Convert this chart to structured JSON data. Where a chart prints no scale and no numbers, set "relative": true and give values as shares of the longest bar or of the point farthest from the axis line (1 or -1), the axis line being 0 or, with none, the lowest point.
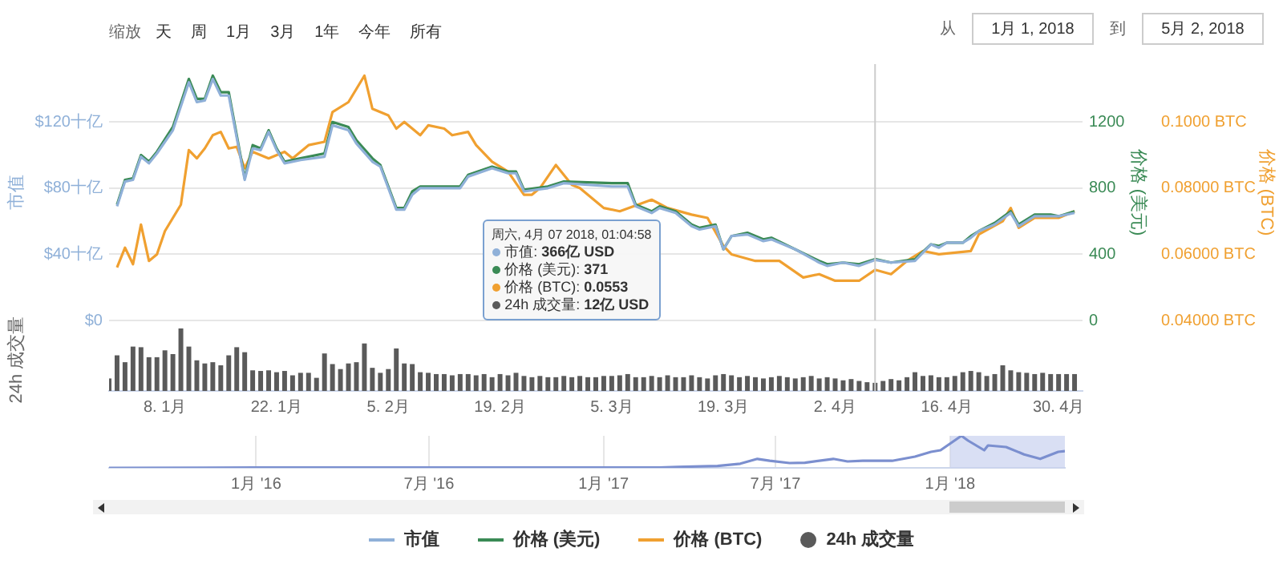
{
  "chart_data": [
    {
      "type": "line",
      "ylabel": "市值",
      "y2label": "价格 (美元)",
      "y3label": "价格 (BTC)",
      "annotations": [
        "缩放",
        "天",
        "周",
        "1月",
        "3月",
        "1年",
        "今年",
        "所有",
        "从",
        "1月 1, 2018",
        "到",
        "5月 2, 2018",
        "周六, 4月 07 2018, 01:04:58",
        "市值: 366亿 USD",
        "价格 (美元): 371",
        "价格 (BTC): 0.0553",
        "24h 成交量: 12亿 USD"
      ],
      "x": [
        "2018-01-02",
        "2018-01-03",
        "2018-01-04",
        "2018-01-05",
        "2018-01-06",
        "2018-01-07",
        "2018-01-09",
        "2018-01-11",
        "2018-01-12",
        "2018-01-13",
        "2018-01-14",
        "2018-01-15",
        "2018-01-16",
        "2018-01-18",
        "2018-01-19",
        "2018-01-20",
        "2018-01-21",
        "2018-01-22",
        "2018-01-23",
        "2018-01-25",
        "2018-01-28",
        "2018-01-29",
        "2018-01-31",
        "2018-02-01",
        "2018-02-03",
        "2018-02-04",
        "2018-02-06",
        "2018-02-07",
        "2018-02-08",
        "2018-02-09",
        "2018-02-12",
        "2018-02-14",
        "2018-02-15",
        "2018-02-18",
        "2018-02-20",
        "2018-02-21",
        "2018-02-22",
        "2018-02-25",
        "2018-02-27",
        "2018-03-05",
        "2018-03-07",
        "2018-03-08",
        "2018-03-10",
        "2018-03-11",
        "2018-03-13",
        "2018-03-15",
        "2018-03-16",
        "2018-03-18",
        "2018-03-19",
        "2018-03-20",
        "2018-03-22",
        "2018-03-24",
        "2018-03-25",
        "2018-03-28",
        "2018-03-31",
        "2018-04-01",
        "2018-04-03",
        "2018-04-05",
        "2018-04-07",
        "2018-04-09",
        "2018-04-12",
        "2018-04-14",
        "2018-04-15",
        "2018-04-16",
        "2018-04-18",
        "2018-04-19",
        "2018-04-20",
        "2018-04-22",
        "2018-04-24",
        "2018-04-25",
        "2018-04-27",
        "2018-04-29",
        "2018-04-30",
        "2018-05-02"
      ],
      "xlim": [
        "2018-01-01",
        "2018-05-03"
      ],
      "ylim": [
        0,
        155
      ],
      "yticks": [
        {
          "value": 0,
          "label": "$0"
        },
        {
          "value": 40,
          "label": "$40十亿"
        },
        {
          "value": 80,
          "label": "$80十亿"
        },
        {
          "value": 120,
          "label": "$120十亿"
        }
      ],
      "y2lim": [
        0,
        1550
      ],
      "y2ticks": [
        0,
        400,
        800,
        1200
      ],
      "y3lim": [
        0.04,
        0.1175
      ],
      "y3ticks": [
        {
          "value": 0.04,
          "label": "0.04000 BTC"
        },
        {
          "value": 0.06,
          "label": "0.06000 BTC"
        },
        {
          "value": 0.08,
          "label": "0.08000 BTC"
        },
        {
          "value": 0.1,
          "label": "0.1000 BTC"
        }
      ],
      "series": [
        {
          "name": "市值",
          "color": "#8fb0d8",
          "axis": "y",
          "values": [
            69,
            84,
            85,
            99,
            95,
            101,
            115,
            144,
            132,
            133,
            146,
            136,
            136,
            85,
            104,
            103,
            114,
            103,
            95,
            97,
            99,
            118,
            115,
            107,
            96,
            93,
            67,
            67,
            76,
            80,
            80,
            80,
            87,
            92,
            89,
            89,
            78,
            80,
            83,
            81,
            81,
            69,
            65,
            68,
            65,
            57,
            55,
            57,
            43,
            51,
            52,
            48,
            49,
            43,
            35,
            33,
            35,
            33,
            36.6,
            35,
            36,
            46,
            44,
            47,
            47,
            50,
            54,
            58,
            65,
            57,
            63,
            63,
            63,
            65
          ]
        },
        {
          "name": "价格 (美元)",
          "color": "#3a8a55",
          "axis": "y2",
          "values": [
            700,
            850,
            860,
            1000,
            960,
            1020,
            1170,
            1460,
            1340,
            1340,
            1480,
            1380,
            1380,
            860,
            1060,
            1040,
            1150,
            1040,
            960,
            980,
            1010,
            1200,
            1170,
            1090,
            980,
            940,
            680,
            680,
            780,
            810,
            810,
            810,
            880,
            930,
            900,
            900,
            790,
            810,
            840,
            830,
            830,
            700,
            660,
            690,
            660,
            580,
            560,
            580,
            430,
            510,
            530,
            490,
            500,
            430,
            360,
            340,
            350,
            340,
            371,
            350,
            370,
            460,
            450,
            470,
            470,
            510,
            540,
            590,
            660,
            580,
            640,
            640,
            630,
            660
          ]
        },
        {
          "name": "价格 (BTC)",
          "color": "#f0a030",
          "axis": "y3",
          "x": [
            "2018-01-02",
            "2018-01-03",
            "2018-01-04",
            "2018-01-05",
            "2018-01-06",
            "2018-01-07",
            "2018-01-08",
            "2018-01-10",
            "2018-01-11",
            "2018-01-12",
            "2018-01-13",
            "2018-01-14",
            "2018-01-15",
            "2018-01-16",
            "2018-01-17",
            "2018-01-18",
            "2018-01-19",
            "2018-01-21",
            "2018-01-23",
            "2018-01-24",
            "2018-01-26",
            "2018-01-28",
            "2018-01-29",
            "2018-01-31",
            "2018-02-02",
            "2018-02-03",
            "2018-02-05",
            "2018-02-06",
            "2018-02-07",
            "2018-02-09",
            "2018-02-10",
            "2018-02-12",
            "2018-02-13",
            "2018-02-15",
            "2018-02-16",
            "2018-02-18",
            "2018-02-20",
            "2018-02-22",
            "2018-02-23",
            "2018-02-24",
            "2018-02-26",
            "2018-02-28",
            "2018-03-01",
            "2018-03-04",
            "2018-03-06",
            "2018-03-10",
            "2018-03-12",
            "2018-03-15",
            "2018-03-17",
            "2018-03-19",
            "2018-03-20",
            "2018-03-23",
            "2018-03-26",
            "2018-03-29",
            "2018-03-31",
            "2018-04-02",
            "2018-04-05",
            "2018-04-07",
            "2018-04-09",
            "2018-04-11",
            "2018-04-13",
            "2018-04-15",
            "2018-04-19",
            "2018-04-20",
            "2018-04-23",
            "2018-04-24",
            "2018-04-25",
            "2018-04-27",
            "2018-04-30",
            "2018-05-02"
          ],
          "values": [
            0.056,
            0.062,
            0.057,
            0.069,
            0.058,
            0.06,
            0.067,
            0.075,
            0.0915,
            0.089,
            0.092,
            0.096,
            0.097,
            0.092,
            0.0925,
            0.086,
            0.091,
            0.089,
            0.091,
            0.089,
            0.093,
            0.094,
            0.103,
            0.106,
            0.114,
            0.104,
            0.102,
            0.098,
            0.1,
            0.096,
            0.099,
            0.098,
            0.096,
            0.097,
            0.093,
            0.088,
            0.085,
            0.078,
            0.078,
            0.08,
            0.087,
            0.081,
            0.08,
            0.074,
            0.073,
            0.0765,
            0.074,
            0.072,
            0.071,
            0.0625,
            0.06,
            0.058,
            0.058,
            0.053,
            0.054,
            0.052,
            0.052,
            0.0553,
            0.054,
            0.058,
            0.061,
            0.06,
            0.061,
            0.066,
            0.07,
            0.074,
            0.068,
            0.071,
            0.071,
            0.073
          ]
        }
      ],
      "ref_lines": [
        {
          "axis": "x",
          "value": "2018-04-07",
          "color": "#cccccc"
        }
      ],
      "grid": "y",
      "legend": "bottom",
      "tick_labels": "y"
    },
    {
      "type": "bar",
      "relative": true,
      "ylabel": "24h 成交量",
      "x": [
        "2018-01-01",
        "2018-01-02",
        "2018-01-03",
        "2018-01-04",
        "2018-01-05",
        "2018-01-06",
        "2018-01-07",
        "2018-01-08",
        "2018-01-09",
        "2018-01-10",
        "2018-01-11",
        "2018-01-12",
        "2018-01-13",
        "2018-01-14",
        "2018-01-15",
        "2018-01-16",
        "2018-01-17",
        "2018-01-18",
        "2018-01-19",
        "2018-01-20",
        "2018-01-21",
        "2018-01-22",
        "2018-01-23",
        "2018-01-24",
        "2018-01-25",
        "2018-01-26",
        "2018-01-27",
        "2018-01-28",
        "2018-01-29",
        "2018-01-30",
        "2018-01-31",
        "2018-02-01",
        "2018-02-02",
        "2018-02-03",
        "2018-02-04",
        "2018-02-05",
        "2018-02-06",
        "2018-02-07",
        "2018-02-08",
        "2018-02-09",
        "2018-02-10",
        "2018-02-11",
        "2018-02-12",
        "2018-02-13",
        "2018-02-14",
        "2018-02-15",
        "2018-02-16",
        "2018-02-17",
        "2018-02-18",
        "2018-02-19",
        "2018-02-20",
        "2018-02-21",
        "2018-02-22",
        "2018-02-23",
        "2018-02-24",
        "2018-02-25",
        "2018-02-26",
        "2018-02-27",
        "2018-02-28",
        "2018-03-01",
        "2018-03-02",
        "2018-03-03",
        "2018-03-04",
        "2018-03-05",
        "2018-03-06",
        "2018-03-07",
        "2018-03-08",
        "2018-03-09",
        "2018-03-10",
        "2018-03-11",
        "2018-03-12",
        "2018-03-13",
        "2018-03-14",
        "2018-03-15",
        "2018-03-16",
        "2018-03-17",
        "2018-03-18",
        "2018-03-19",
        "2018-03-20",
        "2018-03-21",
        "2018-03-22",
        "2018-03-23",
        "2018-03-24",
        "2018-03-25",
        "2018-03-26",
        "2018-03-27",
        "2018-03-28",
        "2018-03-29",
        "2018-03-30",
        "2018-03-31",
        "2018-04-01",
        "2018-04-02",
        "2018-04-03",
        "2018-04-04",
        "2018-04-05",
        "2018-04-06",
        "2018-04-07",
        "2018-04-08",
        "2018-04-09",
        "2018-04-10",
        "2018-04-11",
        "2018-04-12",
        "2018-04-13",
        "2018-04-14",
        "2018-04-15",
        "2018-04-16",
        "2018-04-17",
        "2018-04-18",
        "2018-04-19",
        "2018-04-20",
        "2018-04-21",
        "2018-04-22",
        "2018-04-23",
        "2018-04-24",
        "2018-04-25",
        "2018-04-26",
        "2018-04-27",
        "2018-04-28",
        "2018-04-29",
        "2018-04-30",
        "2018-05-01",
        "2018-05-02"
      ],
      "xlim": [
        "2018-01-01",
        "2018-05-03"
      ],
      "xticks": [
        {
          "value": "2018-01-08",
          "label": "8. 1月"
        },
        {
          "value": "2018-01-22",
          "label": "22. 1月"
        },
        {
          "value": "2018-02-05",
          "label": "5. 2月"
        },
        {
          "value": "2018-02-19",
          "label": "19. 2月"
        },
        {
          "value": "2018-03-05",
          "label": "5. 3月"
        },
        {
          "value": "2018-03-19",
          "label": "19. 3月"
        },
        {
          "value": "2018-04-02",
          "label": "2. 4月"
        },
        {
          "value": "2018-04-16",
          "label": "16. 4月"
        },
        {
          "value": "2018-04-30",
          "label": "30. 4月"
        }
      ],
      "series": [
        {
          "name": "24h 成交量",
          "color": "#5a5a5a",
          "values": [
            0.2,
            0.57,
            0.46,
            0.71,
            0.7,
            0.54,
            0.54,
            0.65,
            0.59,
            1,
            0.71,
            0.49,
            0.44,
            0.46,
            0.41,
            0.57,
            0.7,
            0.62,
            0.33,
            0.32,
            0.33,
            0.3,
            0.32,
            0.25,
            0.29,
            0.29,
            0.21,
            0.6,
            0.43,
            0.35,
            0.44,
            0.46,
            0.76,
            0.37,
            0.29,
            0.35,
            0.68,
            0.44,
            0.43,
            0.3,
            0.29,
            0.27,
            0.27,
            0.25,
            0.27,
            0.27,
            0.25,
            0.27,
            0.22,
            0.27,
            0.25,
            0.29,
            0.24,
            0.22,
            0.24,
            0.22,
            0.22,
            0.24,
            0.22,
            0.24,
            0.22,
            0.22,
            0.24,
            0.24,
            0.25,
            0.27,
            0.22,
            0.22,
            0.24,
            0.22,
            0.25,
            0.22,
            0.22,
            0.25,
            0.22,
            0.2,
            0.25,
            0.27,
            0.25,
            0.22,
            0.24,
            0.22,
            0.2,
            0.22,
            0.24,
            0.22,
            0.2,
            0.22,
            0.24,
            0.2,
            0.22,
            0.2,
            0.17,
            0.19,
            0.16,
            0.14,
            0.13,
            0.16,
            0.19,
            0.17,
            0.22,
            0.3,
            0.24,
            0.25,
            0.22,
            0.22,
            0.24,
            0.3,
            0.32,
            0.3,
            0.24,
            0.27,
            0.41,
            0.33,
            0.3,
            0.29,
            0.27,
            0.29,
            0.27,
            0.27,
            0.27,
            0.27
          ]
        }
      ],
      "ref_lines": [
        {
          "axis": "x",
          "value": "2018-04-07",
          "color": "#cccccc"
        }
      ],
      "legend": "bottom",
      "tick_labels": "x"
    },
    {
      "type": "line",
      "relative": true,
      "color": "#7b8fcf",
      "x": [
        "2015-07-30",
        "2016-01-01",
        "2016-06-15",
        "2017-01-01",
        "2017-03-01",
        "2017-03-20",
        "2017-05-01",
        "2017-05-25",
        "2017-06-12",
        "2017-06-25",
        "2017-07-16",
        "2017-08-01",
        "2017-08-31",
        "2017-09-15",
        "2017-10-01",
        "2017-11-01",
        "2017-11-25",
        "2017-12-12",
        "2017-12-22",
        "2018-01-13",
        "2018-01-20",
        "2018-02-06",
        "2018-02-10",
        "2018-03-01",
        "2018-03-20",
        "2018-04-06",
        "2018-04-25",
        "2018-05-02"
      ],
      "values": [
        0,
        0.01,
        0.01,
        0.01,
        0.01,
        0.03,
        0.06,
        0.13,
        0.28,
        0.22,
        0.15,
        0.16,
        0.28,
        0.2,
        0.22,
        0.22,
        0.35,
        0.5,
        0.55,
        1,
        0.85,
        0.55,
        0.7,
        0.65,
        0.42,
        0.28,
        0.5,
        0.52
      ],
      "xlim": [
        "2015-07-30",
        "2018-05-02"
      ],
      "xticks": [
        {
          "value": "2016-01-01",
          "label": "1月 '16"
        },
        {
          "value": "2016-07-01",
          "label": "7月 '16"
        },
        {
          "value": "2017-01-01",
          "label": "1月 '17"
        },
        {
          "value": "2017-07-01",
          "label": "7月 '17"
        },
        {
          "value": "2018-01-01",
          "label": "1月 '18"
        }
      ],
      "bands": [
        {
          "axis": "x",
          "from": "2018-01-01",
          "to": "2018-05-02",
          "color": "#c9d2ef"
        }
      ],
      "grid": "x",
      "tick_labels": "x"
    }
  ]
}
